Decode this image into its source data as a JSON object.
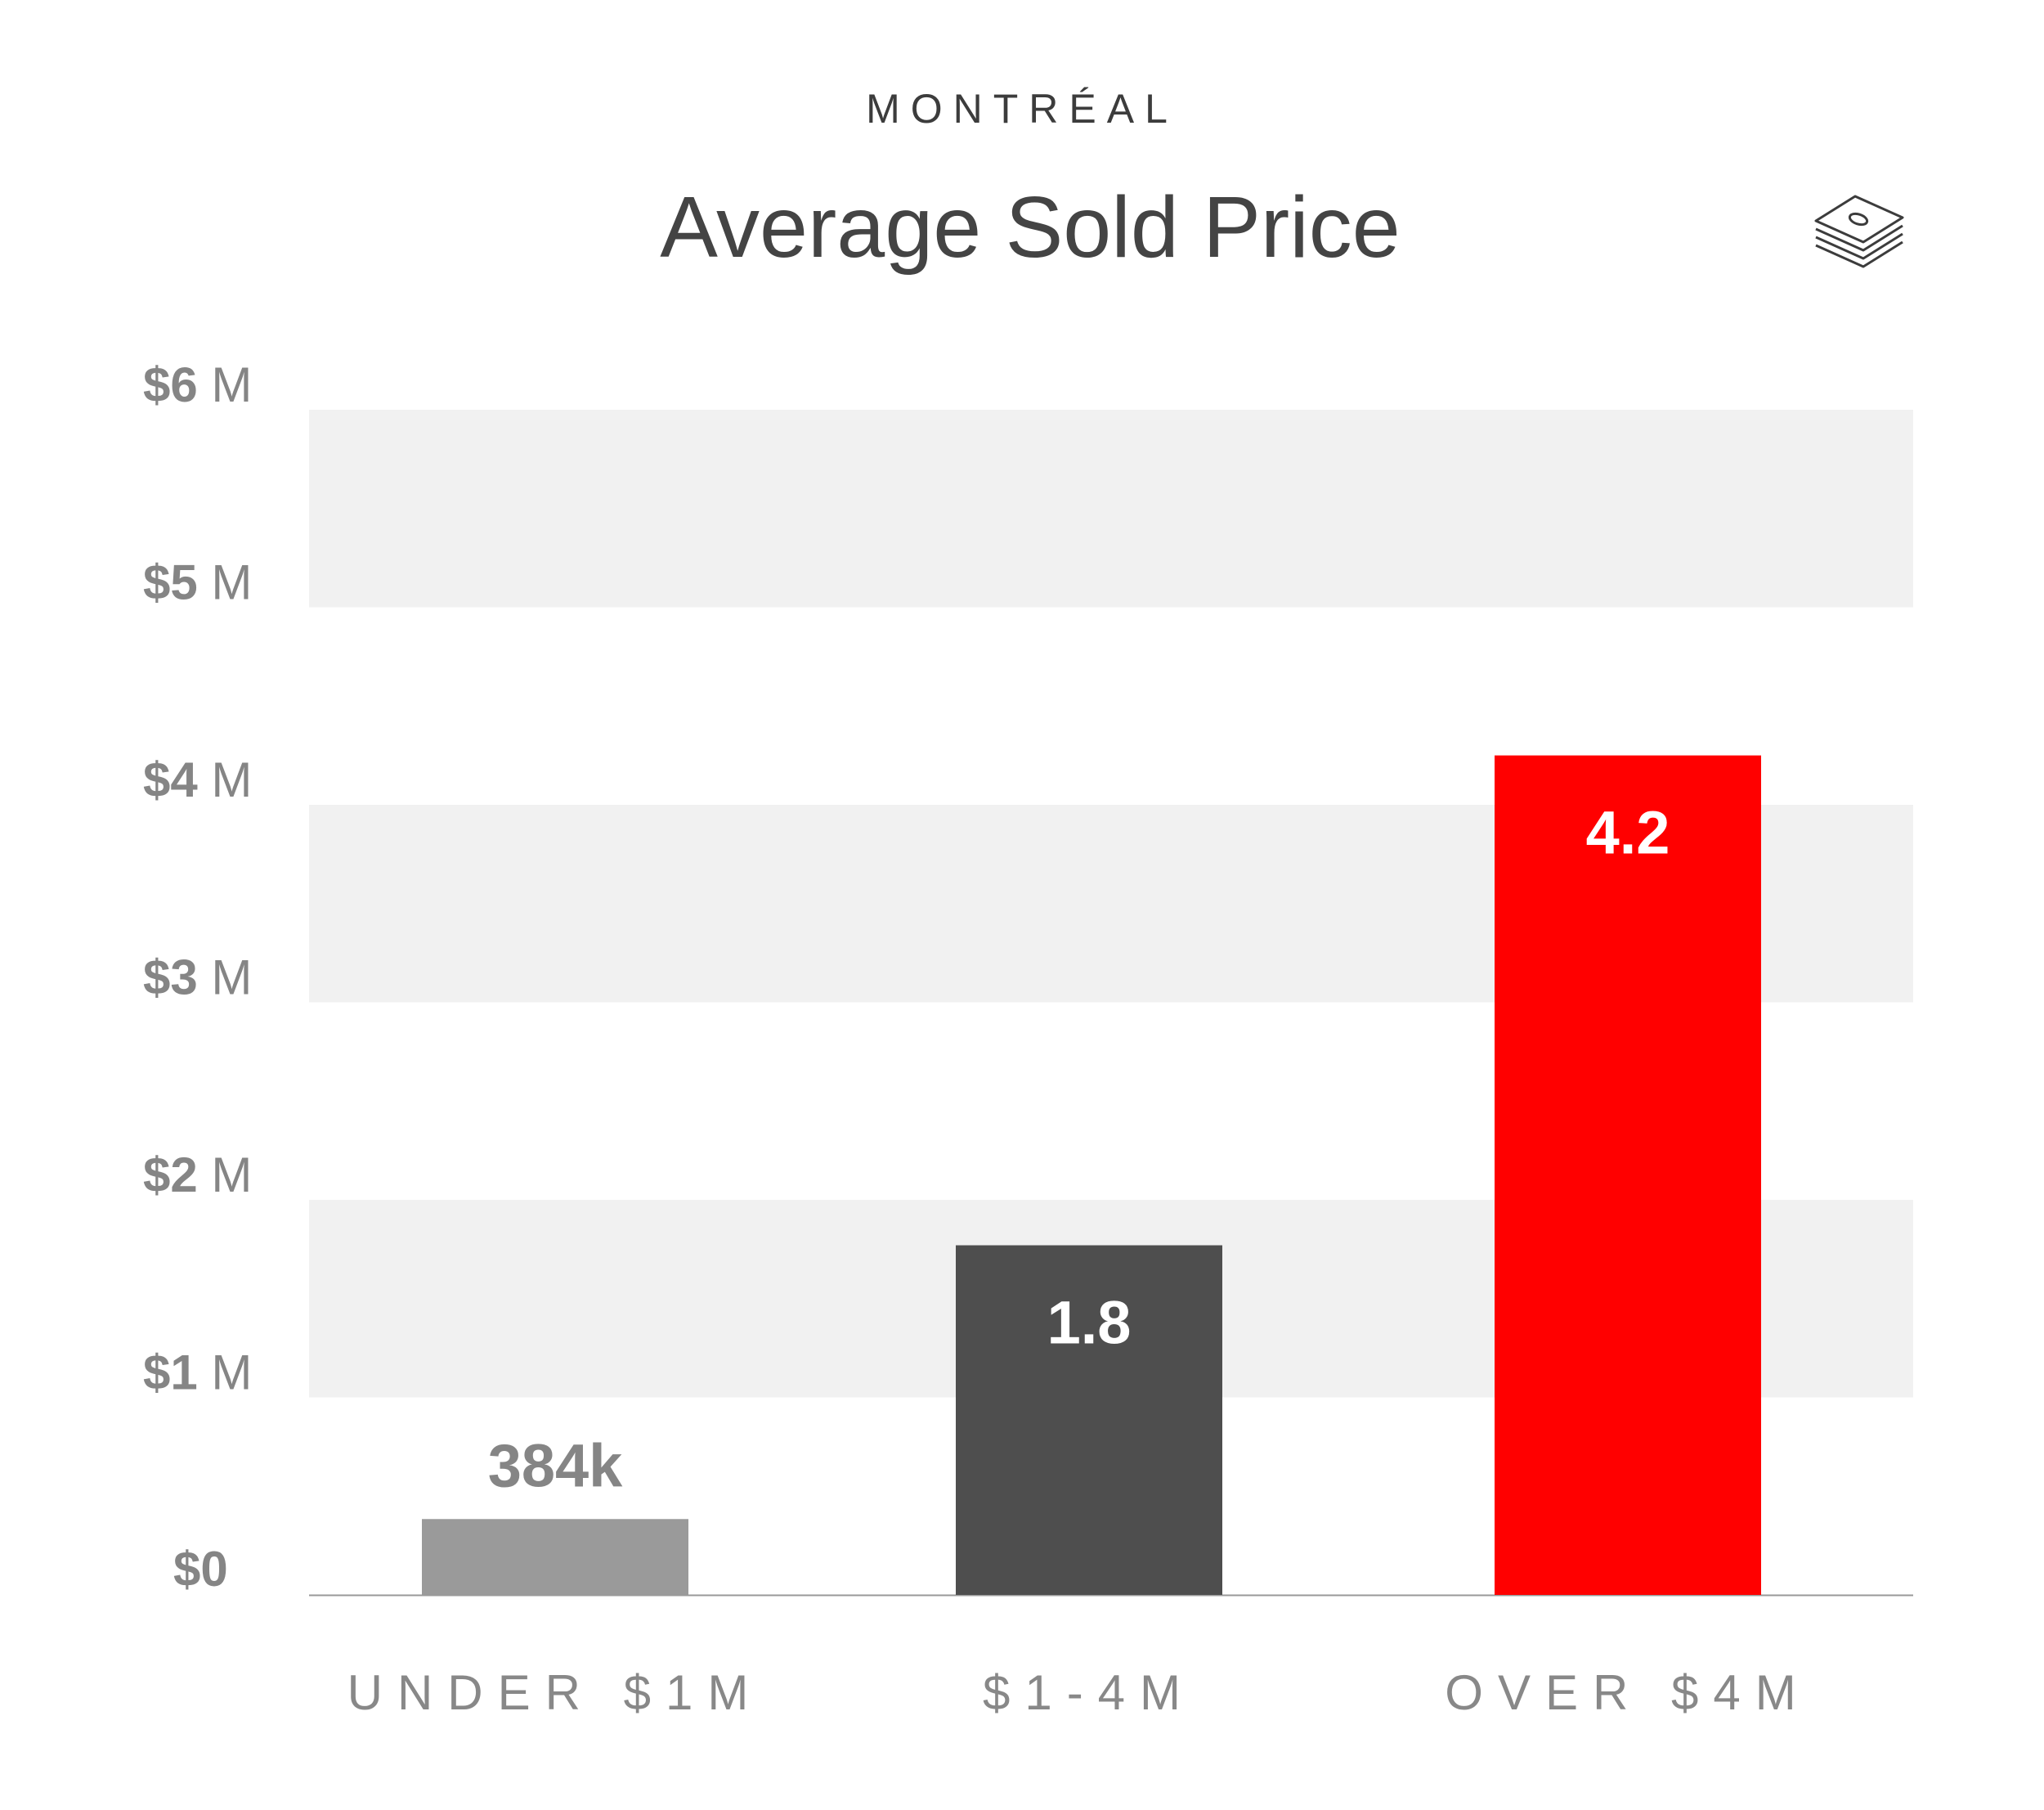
{
  "eyebrow": "MONTRÉAL",
  "title": "Average Sold Price",
  "icon": "money-stack-icon",
  "colors": {
    "band": "#f1f1f1",
    "axis": "#999999",
    "tick": "#858585",
    "category": "#888888",
    "under_bar": "#9a9a9a",
    "mid_bar": "#4e4e4e",
    "over_bar": "#ff0000"
  },
  "chart_data": {
    "type": "bar",
    "categories": [
      "UNDER $1M",
      "$1-4M",
      "OVER $4M"
    ],
    "values": [
      0.384,
      1.77,
      4.25
    ],
    "value_labels": [
      "384k",
      "1.8",
      "4.2"
    ],
    "unit": "M",
    "ylim": [
      0,
      6
    ],
    "yticks": [
      {
        "value": 0,
        "num": "$0",
        "unit": ""
      },
      {
        "value": 1,
        "num": "$1",
        "unit": "M"
      },
      {
        "value": 2,
        "num": "$2",
        "unit": "M"
      },
      {
        "value": 3,
        "num": "$3",
        "unit": "M"
      },
      {
        "value": 4,
        "num": "$4",
        "unit": "M"
      },
      {
        "value": 5,
        "num": "$5",
        "unit": "M"
      },
      {
        "value": 6,
        "num": "$6",
        "unit": "M"
      }
    ],
    "bar_colors": [
      "#9a9a9a",
      "#4e4e4e",
      "#ff0000"
    ],
    "label_colors": [
      "#858585",
      "#ffffff",
      "#ffffff"
    ],
    "grid": "alternating-bands",
    "legend": "none"
  }
}
